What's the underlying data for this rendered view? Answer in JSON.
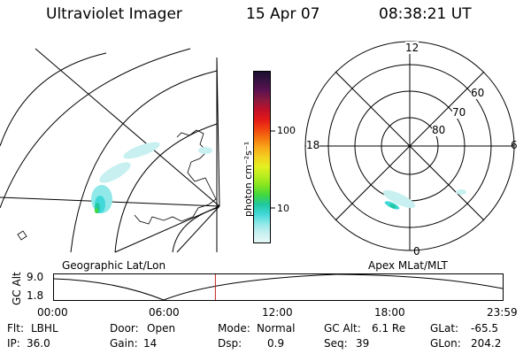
{
  "header": {
    "instrument": "Ultraviolet Imager",
    "date": "15 Apr 07",
    "time": "08:38:21 UT"
  },
  "colorbar": {
    "unit_label": "photon cm⁻²s⁻¹",
    "ticks": [
      "100",
      "10"
    ],
    "colors": [
      "#1a0f2e",
      "#3a1244",
      "#5c1250",
      "#8a1a40",
      "#c0102a",
      "#e01818",
      "#f04010",
      "#f47410",
      "#f8a818",
      "#f4d020",
      "#e4f020",
      "#b8ee20",
      "#84e420",
      "#40d840",
      "#20c8a0",
      "#40d8d8",
      "#90e8e8",
      "#c8f0f0",
      "#e8f8f8"
    ]
  },
  "geo_panel": {
    "label": "Geographic Lat/Lon"
  },
  "polar_panel": {
    "label": "Apex MLat/MLT",
    "mlt_labels": {
      "top": "12",
      "right": "6",
      "bottom": "0",
      "left": "18"
    },
    "lat_labels": [
      "60",
      "70",
      "80"
    ]
  },
  "timeline": {
    "ylabel": "GC Alt",
    "y_ticks": [
      "9.0",
      "1.8"
    ],
    "x_ticks": [
      "00:00",
      "06:00",
      "12:00",
      "18:00",
      "23:59"
    ],
    "marker_time": "08:38",
    "marker_color": "#c02020"
  },
  "status": {
    "filter_label": "Flt:",
    "filter_value": "LBHL",
    "door_label": "Door:",
    "door_value": "Open",
    "mode_label": "Mode:",
    "mode_value": "Normal",
    "gcalt_label": "GC Alt:",
    "gcalt_value": "6.1 Re",
    "glat_label": "GLat:",
    "glat_value": "-65.5",
    "ip_label": "IP:",
    "ip_value": "36.0",
    "gain_label": "Gain:",
    "gain_value": "14",
    "dsp_label": "Dsp:",
    "dsp_value": "0.9",
    "seq_label": "Seq:",
    "seq_value": "39",
    "glon_label": "GLon:",
    "glon_value": "204.2"
  }
}
